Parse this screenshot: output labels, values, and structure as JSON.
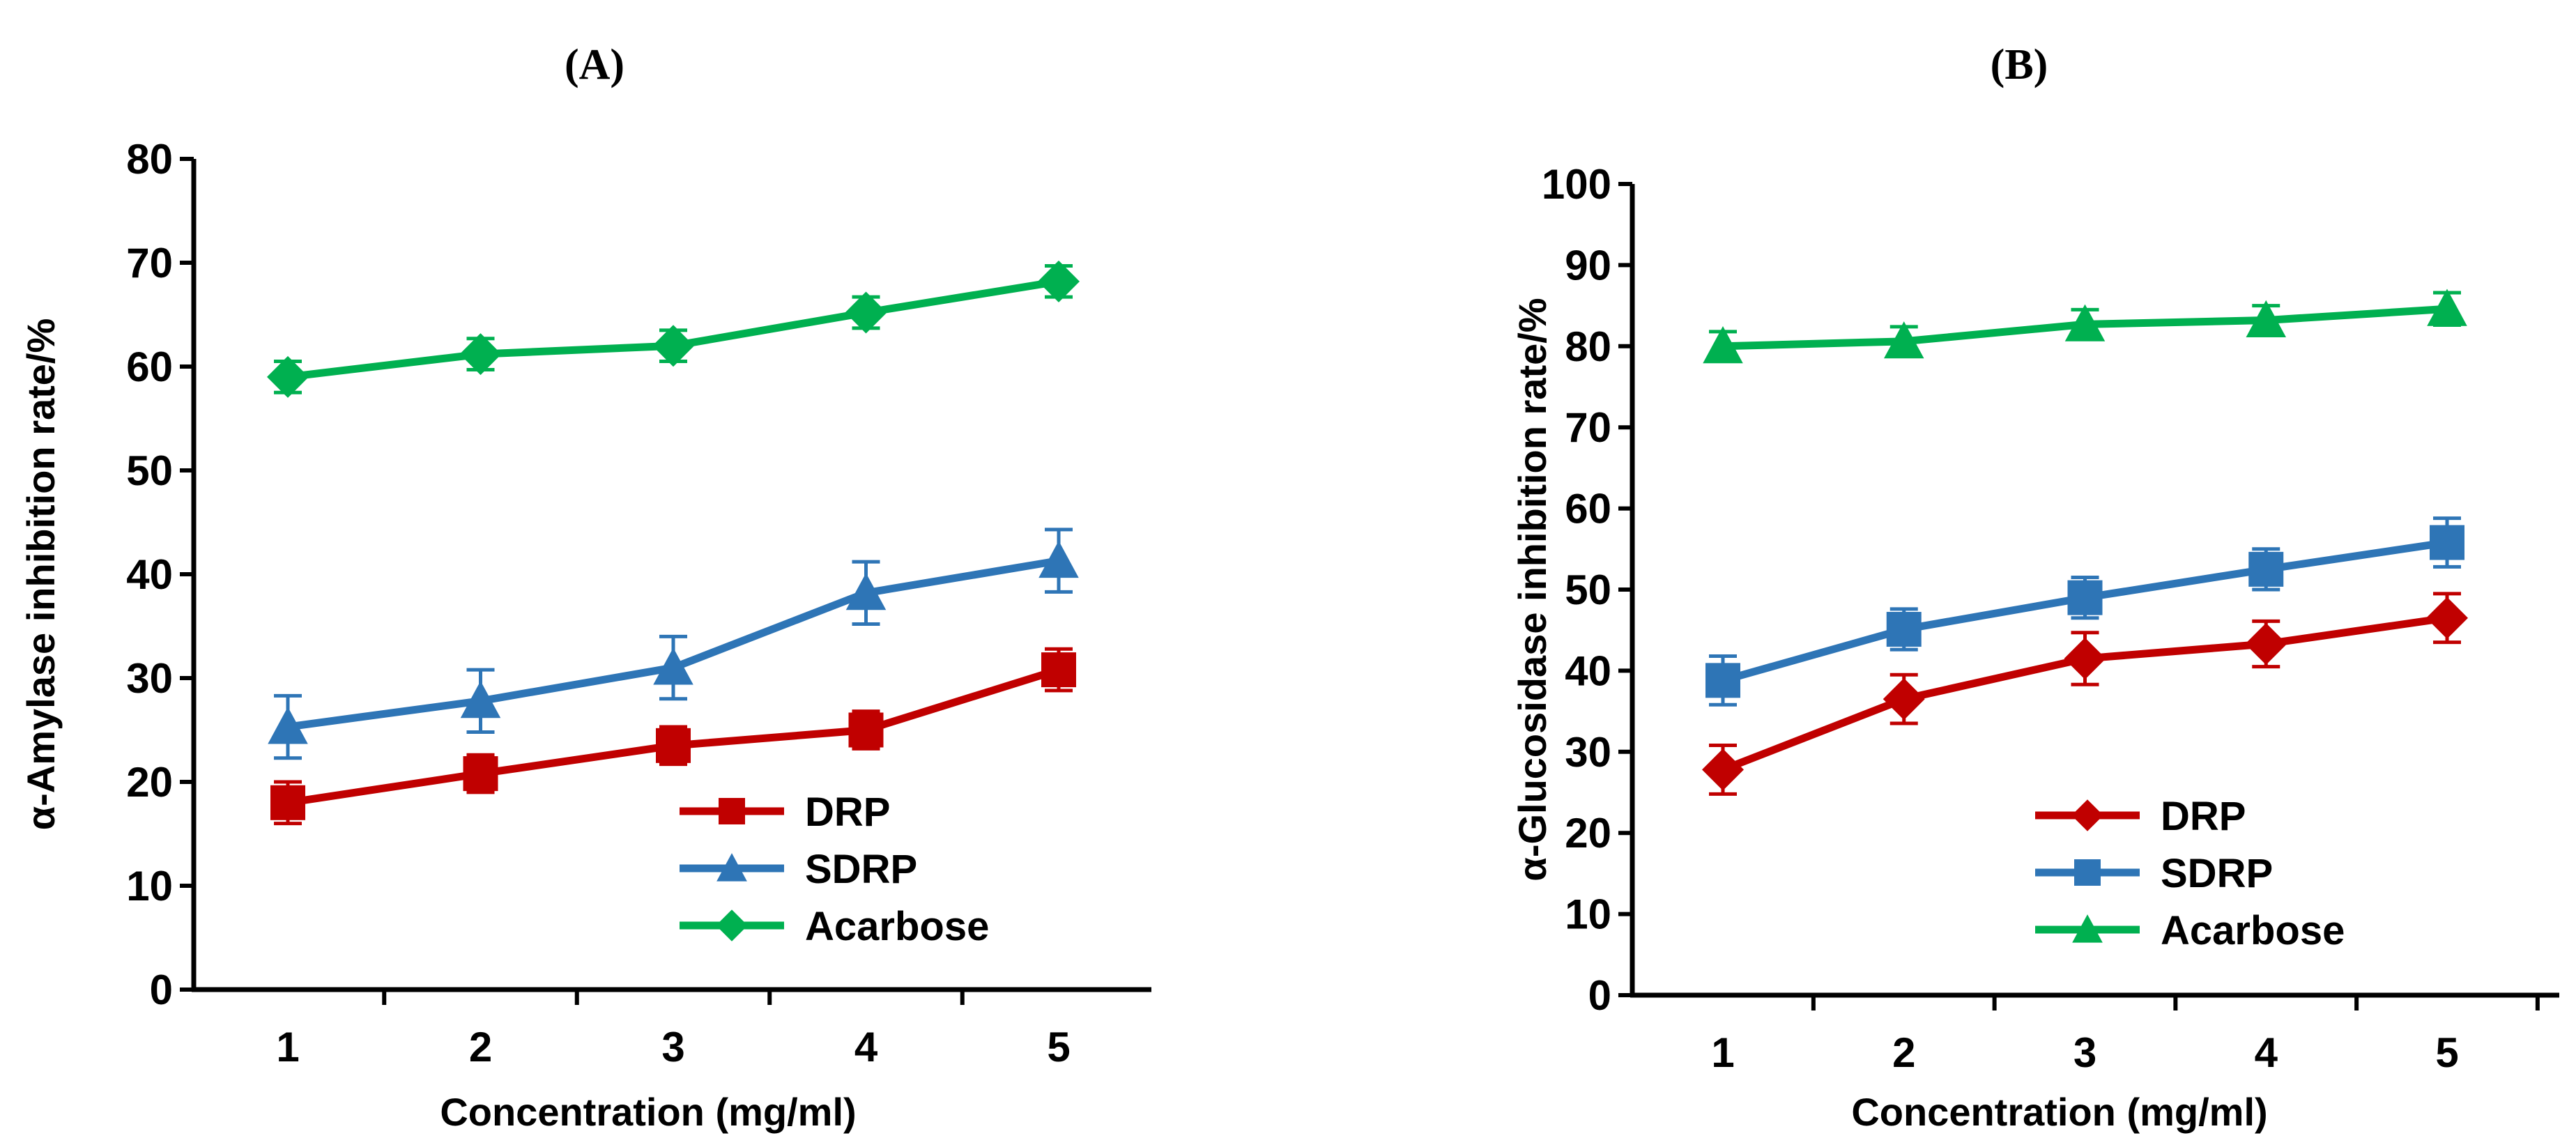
{
  "chart_data": [
    {
      "type": "line",
      "panel_label": "(A)",
      "xlabel": "Concentration (mg/ml)",
      "ylabel": "α-Amylase inhibition rate/%",
      "ylim": [
        0,
        80
      ],
      "yticks": [
        0,
        10,
        20,
        30,
        40,
        50,
        60,
        70,
        80
      ],
      "x": [
        1,
        2,
        3,
        4,
        5
      ],
      "x_tick_labels": [
        "1",
        "2",
        "3",
        "4",
        "5"
      ],
      "legend_position": "lower-right",
      "series": [
        {
          "name": "DRP",
          "color": "#C00000",
          "marker": "square",
          "values": [
            18.0,
            20.8,
            23.5,
            25.0,
            30.8
          ],
          "errors": [
            2.0,
            1.8,
            1.8,
            1.8,
            2.0
          ]
        },
        {
          "name": "SDRP",
          "color": "#2E75B6",
          "marker": "triangle",
          "values": [
            25.3,
            27.8,
            31.0,
            38.2,
            41.3
          ],
          "errors": [
            3.0,
            3.0,
            3.0,
            3.0,
            3.0
          ]
        },
        {
          "name": "Acarbose",
          "color": "#00B050",
          "marker": "diamond",
          "values": [
            59.0,
            61.2,
            62.0,
            65.2,
            68.2
          ],
          "errors": [
            1.5,
            1.5,
            1.5,
            1.5,
            1.5
          ]
        }
      ]
    },
    {
      "type": "line",
      "panel_label": "(B)",
      "xlabel": "Concentration (mg/ml)",
      "ylabel": "α-Glucosidase inhibition rate/%",
      "ylim": [
        0,
        100
      ],
      "yticks": [
        0,
        10,
        20,
        30,
        40,
        50,
        60,
        70,
        80,
        90,
        100
      ],
      "x": [
        1,
        2,
        3,
        4,
        5
      ],
      "x_tick_labels": [
        "1",
        "2",
        "3",
        "4",
        "5"
      ],
      "legend_position": "lower-right",
      "series": [
        {
          "name": "DRP",
          "color": "#C00000",
          "marker": "diamond",
          "values": [
            27.8,
            36.5,
            41.5,
            43.3,
            46.5
          ],
          "errors": [
            3.0,
            3.0,
            3.2,
            2.8,
            3.0
          ]
        },
        {
          "name": "SDRP",
          "color": "#2E75B6",
          "marker": "square",
          "values": [
            38.8,
            45.1,
            49.0,
            52.5,
            55.8
          ],
          "errors": [
            3.0,
            2.5,
            2.5,
            2.5,
            3.0
          ]
        },
        {
          "name": "Acarbose",
          "color": "#00B050",
          "marker": "triangle",
          "values": [
            80.0,
            80.6,
            82.7,
            83.2,
            84.6
          ],
          "errors": [
            1.8,
            1.8,
            1.8,
            1.8,
            2.0
          ]
        }
      ]
    }
  ]
}
